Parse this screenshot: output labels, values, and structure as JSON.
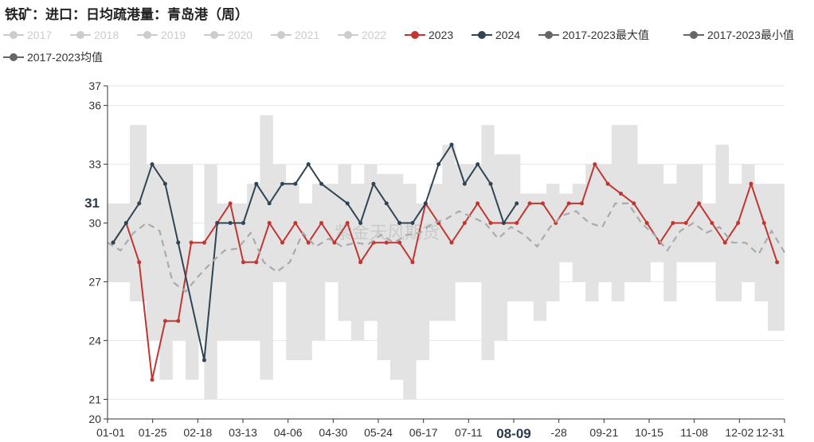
{
  "title": "铁矿：进口：日均疏港量：青岛港（周）",
  "watermark": "紫金天风期货",
  "legend": [
    {
      "name": "2017",
      "color": "#cccccc",
      "active": false
    },
    {
      "name": "2018",
      "color": "#cccccc",
      "active": false
    },
    {
      "name": "2019",
      "color": "#cccccc",
      "active": false
    },
    {
      "name": "2020",
      "color": "#cccccc",
      "active": false
    },
    {
      "name": "2021",
      "color": "#cccccc",
      "active": false
    },
    {
      "name": "2022",
      "color": "#cccccc",
      "active": false
    },
    {
      "name": "2023",
      "color": "#c23531",
      "active": true
    },
    {
      "name": "2024",
      "color": "#2f4554",
      "active": true
    },
    {
      "name": "2017-2023最大值",
      "color": "#666666",
      "active": true
    },
    {
      "name": "2017-2023最小值",
      "color": "#666666",
      "active": true
    },
    {
      "name": "2017-2023均值",
      "color": "#666666",
      "active": true
    }
  ],
  "chart_data": {
    "type": "line",
    "ylim": [
      20,
      37
    ],
    "yticks": [
      20,
      21,
      24,
      27,
      30,
      33,
      36,
      37
    ],
    "x_range": [
      "01-01",
      "12-31"
    ],
    "xticks": [
      "01-01",
      "01-25",
      "02-18",
      "03-13",
      "04-06",
      "04-30",
      "05-24",
      "06-17",
      "07-11",
      "08-09",
      "-28",
      "09-21",
      "10-15",
      "11-08",
      "12-02",
      "12-31"
    ],
    "highlight_x": "08-09",
    "highlight_y": "31",
    "series": [
      {
        "name": "2023",
        "color": "#c23531",
        "points": [
          [
            "01-04",
            29.0
          ],
          [
            "01-11",
            30.0
          ],
          [
            "01-18",
            28.0
          ],
          [
            "01-25",
            22.0
          ],
          [
            "02-01",
            25.0
          ],
          [
            "02-08",
            25.0
          ],
          [
            "02-15",
            29.0
          ],
          [
            "02-22",
            29.0
          ],
          [
            "03-01",
            30.0
          ],
          [
            "03-08",
            31.0
          ],
          [
            "03-15",
            28.0
          ],
          [
            "03-22",
            28.0
          ],
          [
            "03-29",
            30.0
          ],
          [
            "04-05",
            29.0
          ],
          [
            "04-12",
            30.0
          ],
          [
            "04-19",
            29.0
          ],
          [
            "04-26",
            30.0
          ],
          [
            "05-03",
            29.0
          ],
          [
            "05-10",
            30.0
          ],
          [
            "05-17",
            28.0
          ],
          [
            "05-24",
            29.0
          ],
          [
            "05-31",
            29.0
          ],
          [
            "06-07",
            29.0
          ],
          [
            "06-14",
            28.0
          ],
          [
            "06-21",
            31.0
          ],
          [
            "06-28",
            30.0
          ],
          [
            "07-05",
            29.0
          ],
          [
            "07-12",
            30.0
          ],
          [
            "07-19",
            31.0
          ],
          [
            "07-26",
            30.0
          ],
          [
            "08-02",
            30.0
          ],
          [
            "08-09",
            30.0
          ],
          [
            "08-16",
            31.0
          ],
          [
            "08-23",
            31.0
          ],
          [
            "08-30",
            30.0
          ],
          [
            "09-06",
            31.0
          ],
          [
            "09-13",
            31.0
          ],
          [
            "09-20",
            33.0
          ],
          [
            "09-27",
            32.0
          ],
          [
            "10-04",
            31.5
          ],
          [
            "10-11",
            31.0
          ],
          [
            "10-18",
            30.0
          ],
          [
            "10-25",
            29.0
          ],
          [
            "11-01",
            30.0
          ],
          [
            "11-08",
            30.0
          ],
          [
            "11-15",
            31.0
          ],
          [
            "11-22",
            30.0
          ],
          [
            "11-29",
            29.0
          ],
          [
            "12-06",
            30.0
          ],
          [
            "12-13",
            32.0
          ],
          [
            "12-20",
            30.0
          ],
          [
            "12-27",
            28.0
          ]
        ]
      },
      {
        "name": "2024",
        "color": "#2f4554",
        "points": [
          [
            "01-04",
            29.0
          ],
          [
            "01-11",
            30.0
          ],
          [
            "01-18",
            31.0
          ],
          [
            "01-25",
            33.0
          ],
          [
            "02-01",
            32.0
          ],
          [
            "02-08",
            29.0
          ],
          [
            "02-22",
            23.0
          ],
          [
            "03-01",
            30.0
          ],
          [
            "03-08",
            30.0
          ],
          [
            "03-15",
            30.0
          ],
          [
            "03-22",
            32.0
          ],
          [
            "03-29",
            31.0
          ],
          [
            "04-05",
            32.0
          ],
          [
            "04-12",
            32.0
          ],
          [
            "04-19",
            33.0
          ],
          [
            "04-26",
            32.0
          ],
          [
            "05-10",
            31.0
          ],
          [
            "05-17",
            30.0
          ],
          [
            "05-24",
            32.0
          ],
          [
            "05-31",
            31.0
          ],
          [
            "06-07",
            30.0
          ],
          [
            "06-14",
            30.0
          ],
          [
            "06-21",
            31.0
          ],
          [
            "06-28",
            33.0
          ],
          [
            "07-05",
            34.0
          ],
          [
            "07-12",
            32.0
          ],
          [
            "07-19",
            33.0
          ],
          [
            "07-26",
            32.0
          ],
          [
            "08-02",
            30.0
          ],
          [
            "08-09",
            31.0
          ]
        ]
      },
      {
        "name": "2017-2023均值",
        "color": "#aaaaaa",
        "dashed": true,
        "points": [
          [
            "01-01",
            29.0
          ],
          [
            "01-08",
            28.6
          ],
          [
            "01-15",
            29.5
          ],
          [
            "01-22",
            30.0
          ],
          [
            "01-29",
            29.6
          ],
          [
            "02-05",
            27.0
          ],
          [
            "02-12",
            26.5
          ],
          [
            "02-19",
            27.3
          ],
          [
            "02-26",
            28.0
          ],
          [
            "03-05",
            28.6
          ],
          [
            "03-12",
            28.7
          ],
          [
            "03-19",
            29.5
          ],
          [
            "03-26",
            28.0
          ],
          [
            "04-02",
            27.5
          ],
          [
            "04-09",
            28.0
          ],
          [
            "04-16",
            29.5
          ],
          [
            "04-23",
            28.8
          ],
          [
            "04-30",
            29.2
          ],
          [
            "05-07",
            28.8
          ],
          [
            "05-14",
            29.0
          ],
          [
            "05-21",
            28.9
          ],
          [
            "05-28",
            29.4
          ],
          [
            "06-04",
            29.0
          ],
          [
            "06-11",
            29.4
          ],
          [
            "06-18",
            29.5
          ],
          [
            "06-25",
            30.0
          ],
          [
            "07-02",
            30.2
          ],
          [
            "07-09",
            30.6
          ],
          [
            "07-16",
            30.3
          ],
          [
            "07-23",
            30.0
          ],
          [
            "07-30",
            29.2
          ],
          [
            "08-06",
            29.8
          ],
          [
            "08-13",
            29.4
          ],
          [
            "08-20",
            28.8
          ],
          [
            "08-27",
            29.8
          ],
          [
            "09-03",
            30.4
          ],
          [
            "09-10",
            30.6
          ],
          [
            "09-17",
            30.0
          ],
          [
            "09-24",
            29.8
          ],
          [
            "10-01",
            31.0
          ],
          [
            "10-08",
            31.0
          ],
          [
            "10-15",
            30.0
          ],
          [
            "10-22",
            29.4
          ],
          [
            "10-29",
            28.6
          ],
          [
            "11-05",
            29.6
          ],
          [
            "11-12",
            30.0
          ],
          [
            "11-19",
            29.5
          ],
          [
            "11-26",
            29.8
          ],
          [
            "12-03",
            29.0
          ],
          [
            "12-10",
            29.0
          ],
          [
            "12-17",
            28.4
          ],
          [
            "12-24",
            29.6
          ],
          [
            "12-31",
            28.5
          ]
        ]
      }
    ],
    "band": {
      "name": "2017-2023最大值 / 2017-2023最小值",
      "color": "#e3e3e3",
      "upper": [
        [
          "01-01",
          31.0
        ],
        [
          "01-11",
          31.0
        ],
        [
          "01-13",
          35.0
        ],
        [
          "01-20",
          35.0
        ],
        [
          "01-22",
          33.0
        ],
        [
          "02-12",
          33.0
        ],
        [
          "02-16",
          29.0
        ],
        [
          "02-22",
          33.0
        ],
        [
          "02-27",
          33.0
        ],
        [
          "03-01",
          31.0
        ],
        [
          "03-10",
          31.0
        ],
        [
          "03-17",
          32.0
        ],
        [
          "03-24",
          35.5
        ],
        [
          "03-31",
          33.0
        ],
        [
          "04-07",
          32.0
        ],
        [
          "04-14",
          31.0
        ],
        [
          "04-21",
          32.0
        ],
        [
          "04-28",
          32.0
        ],
        [
          "05-05",
          33.0
        ],
        [
          "05-12",
          32.0
        ],
        [
          "05-19",
          33.0
        ],
        [
          "05-26",
          32.5
        ],
        [
          "06-02",
          32.5
        ],
        [
          "06-09",
          32.0
        ],
        [
          "06-16",
          31.0
        ],
        [
          "06-23",
          32.0
        ],
        [
          "06-30",
          34.0
        ],
        [
          "07-07",
          33.0
        ],
        [
          "07-14",
          33.0
        ],
        [
          "07-21",
          35.0
        ],
        [
          "07-28",
          33.5
        ],
        [
          "08-04",
          33.5
        ],
        [
          "08-11",
          31.5
        ],
        [
          "08-18",
          31.5
        ],
        [
          "08-25",
          32.0
        ],
        [
          "09-01",
          31.5
        ],
        [
          "09-08",
          32.0
        ],
        [
          "09-15",
          33.0
        ],
        [
          "09-22",
          33.0
        ],
        [
          "09-29",
          35.0
        ],
        [
          "10-06",
          35.0
        ],
        [
          "10-13",
          33.0
        ],
        [
          "10-20",
          33.0
        ],
        [
          "10-27",
          32.0
        ],
        [
          "11-03",
          33.0
        ],
        [
          "11-10",
          33.0
        ],
        [
          "11-17",
          31.0
        ],
        [
          "11-24",
          34.0
        ],
        [
          "12-01",
          32.0
        ],
        [
          "12-08",
          33.0
        ],
        [
          "12-15",
          32.0
        ],
        [
          "12-22",
          32.0
        ],
        [
          "12-31",
          32.0
        ]
      ],
      "lower": [
        [
          "01-01",
          27.0
        ],
        [
          "01-11",
          27.0
        ],
        [
          "01-13",
          26.0
        ],
        [
          "01-20",
          26.0
        ],
        [
          "01-22",
          24.0
        ],
        [
          "01-29",
          22.0
        ],
        [
          "02-05",
          24.0
        ],
        [
          "02-12",
          22.0
        ],
        [
          "02-19",
          24.0
        ],
        [
          "02-22",
          21.0
        ],
        [
          "02-27",
          21.0
        ],
        [
          "03-01",
          24.0
        ],
        [
          "03-10",
          24.0
        ],
        [
          "03-17",
          24.0
        ],
        [
          "03-24",
          22.0
        ],
        [
          "03-31",
          27.0
        ],
        [
          "04-07",
          23.0
        ],
        [
          "04-14",
          23.0
        ],
        [
          "04-21",
          24.0
        ],
        [
          "04-28",
          27.0
        ],
        [
          "05-05",
          25.0
        ],
        [
          "05-12",
          24.0
        ],
        [
          "05-19",
          25.0
        ],
        [
          "05-26",
          23.0
        ],
        [
          "06-02",
          22.0
        ],
        [
          "06-09",
          21.0
        ],
        [
          "06-16",
          23.0
        ],
        [
          "06-23",
          25.0
        ],
        [
          "06-30",
          25.0
        ],
        [
          "07-07",
          27.0
        ],
        [
          "07-14",
          27.0
        ],
        [
          "07-21",
          23.0
        ],
        [
          "07-28",
          24.0
        ],
        [
          "08-04",
          26.0
        ],
        [
          "08-11",
          26.0
        ],
        [
          "08-18",
          25.0
        ],
        [
          "08-25",
          26.0
        ],
        [
          "09-01",
          28.0
        ],
        [
          "09-08",
          27.0
        ],
        [
          "09-15",
          26.0
        ],
        [
          "09-22",
          27.0
        ],
        [
          "09-29",
          26.0
        ],
        [
          "10-06",
          27.0
        ],
        [
          "10-13",
          27.0
        ],
        [
          "10-20",
          28.0
        ],
        [
          "10-27",
          26.0
        ],
        [
          "11-03",
          28.0
        ],
        [
          "11-10",
          28.0
        ],
        [
          "11-17",
          28.0
        ],
        [
          "11-24",
          26.0
        ],
        [
          "12-01",
          26.0
        ],
        [
          "12-08",
          27.0
        ],
        [
          "12-15",
          26.0
        ],
        [
          "12-22",
          24.5
        ],
        [
          "12-31",
          26.0
        ]
      ]
    }
  }
}
